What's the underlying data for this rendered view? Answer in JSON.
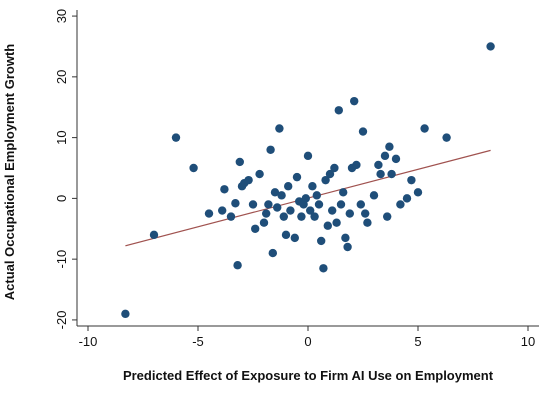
{
  "chart_data": {
    "type": "scatter",
    "title": "",
    "xlabel": "Predicted Effect of Exposure to Firm AI Use on Employment",
    "ylabel": "Actual Occupational Employment Growth",
    "xlim": [
      -10.5,
      10.5
    ],
    "ylim": [
      -21,
      31
    ],
    "xticks": [
      -10,
      -5,
      0,
      5,
      10
    ],
    "yticks": [
      -20,
      -10,
      0,
      10,
      20,
      30
    ],
    "grid": false,
    "legend": "none",
    "colors": {
      "points": "#1f4e79",
      "fit_line": "#a0524f",
      "axis": "#333333"
    },
    "fit_line": {
      "x": [
        -8.3,
        8.3
      ],
      "y": [
        -7.8,
        7.9
      ]
    },
    "points": [
      {
        "x": 8.3,
        "y": 25
      },
      {
        "x": -8.3,
        "y": -19
      },
      {
        "x": -7.0,
        "y": -6
      },
      {
        "x": -6.0,
        "y": 10
      },
      {
        "x": -5.2,
        "y": 5
      },
      {
        "x": -4.5,
        "y": -2.5
      },
      {
        "x": -3.9,
        "y": -2
      },
      {
        "x": -3.8,
        "y": 1.5
      },
      {
        "x": -3.5,
        "y": -3
      },
      {
        "x": -3.3,
        "y": -0.8
      },
      {
        "x": -3.2,
        "y": -11
      },
      {
        "x": -3.1,
        "y": 6
      },
      {
        "x": -3.0,
        "y": 2
      },
      {
        "x": -2.9,
        "y": 2.5
      },
      {
        "x": -2.7,
        "y": 3
      },
      {
        "x": -2.5,
        "y": -1
      },
      {
        "x": -2.4,
        "y": -5
      },
      {
        "x": -2.2,
        "y": 4
      },
      {
        "x": -2.0,
        "y": -4
      },
      {
        "x": -1.9,
        "y": -2.5
      },
      {
        "x": -1.8,
        "y": -1
      },
      {
        "x": -1.7,
        "y": 8
      },
      {
        "x": -1.6,
        "y": -9
      },
      {
        "x": -1.5,
        "y": 1
      },
      {
        "x": -1.4,
        "y": -1.5
      },
      {
        "x": -1.3,
        "y": 11.5
      },
      {
        "x": -1.2,
        "y": 0.5
      },
      {
        "x": -1.1,
        "y": -3
      },
      {
        "x": -1.0,
        "y": -6
      },
      {
        "x": -0.9,
        "y": 2
      },
      {
        "x": -0.8,
        "y": -2
      },
      {
        "x": -0.6,
        "y": -6.5
      },
      {
        "x": -0.5,
        "y": 3.5
      },
      {
        "x": -0.4,
        "y": -0.5
      },
      {
        "x": -0.3,
        "y": -3
      },
      {
        "x": -0.2,
        "y": -1
      },
      {
        "x": -0.1,
        "y": 0
      },
      {
        "x": 0.0,
        "y": 7
      },
      {
        "x": 0.1,
        "y": -2
      },
      {
        "x": 0.2,
        "y": 2
      },
      {
        "x": 0.3,
        "y": -3
      },
      {
        "x": 0.4,
        "y": 0.5
      },
      {
        "x": 0.5,
        "y": -1
      },
      {
        "x": 0.6,
        "y": -7
      },
      {
        "x": 0.7,
        "y": -11.5
      },
      {
        "x": 0.8,
        "y": 3
      },
      {
        "x": 0.9,
        "y": -4.5
      },
      {
        "x": 1.0,
        "y": 4
      },
      {
        "x": 1.1,
        "y": -2
      },
      {
        "x": 1.2,
        "y": 5
      },
      {
        "x": 1.3,
        "y": -4
      },
      {
        "x": 1.4,
        "y": 14.5
      },
      {
        "x": 1.5,
        "y": -1
      },
      {
        "x": 1.6,
        "y": 1
      },
      {
        "x": 1.7,
        "y": -6.5
      },
      {
        "x": 1.8,
        "y": -8
      },
      {
        "x": 1.9,
        "y": -2.5
      },
      {
        "x": 2.0,
        "y": 5
      },
      {
        "x": 2.1,
        "y": 16
      },
      {
        "x": 2.2,
        "y": 5.5
      },
      {
        "x": 2.4,
        "y": -1
      },
      {
        "x": 2.5,
        "y": 11
      },
      {
        "x": 2.6,
        "y": -2.5
      },
      {
        "x": 2.7,
        "y": -4
      },
      {
        "x": 3.0,
        "y": 0.5
      },
      {
        "x": 3.2,
        "y": 5.5
      },
      {
        "x": 3.3,
        "y": 4
      },
      {
        "x": 3.5,
        "y": 7
      },
      {
        "x": 3.6,
        "y": -3
      },
      {
        "x": 3.7,
        "y": 8.5
      },
      {
        "x": 3.8,
        "y": 4
      },
      {
        "x": 4.0,
        "y": 6.5
      },
      {
        "x": 4.2,
        "y": -1
      },
      {
        "x": 4.5,
        "y": 0
      },
      {
        "x": 4.7,
        "y": 3
      },
      {
        "x": 5.0,
        "y": 1
      },
      {
        "x": 5.3,
        "y": 11.5
      },
      {
        "x": 6.3,
        "y": 10
      }
    ]
  }
}
